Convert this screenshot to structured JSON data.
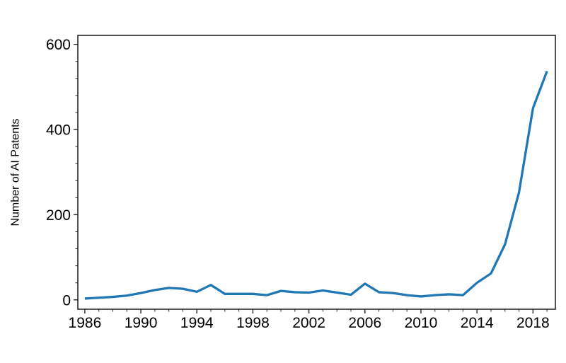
{
  "chart_data": {
    "type": "line",
    "title": "",
    "xlabel": "",
    "ylabel": "Number of AI Patents",
    "x": [
      1986,
      1987,
      1988,
      1989,
      1990,
      1991,
      1992,
      1993,
      1994,
      1995,
      1996,
      1997,
      1998,
      1999,
      2000,
      2001,
      2002,
      2003,
      2004,
      2005,
      2006,
      2007,
      2008,
      2009,
      2010,
      2011,
      2012,
      2013,
      2014,
      2015,
      2016,
      2017,
      2018,
      2019
    ],
    "series": [
      {
        "name": "AI Patents",
        "values": [
          3,
          5,
          7,
          10,
          16,
          23,
          28,
          26,
          19,
          35,
          14,
          14,
          14,
          11,
          21,
          18,
          17,
          22,
          17,
          12,
          38,
          18,
          16,
          11,
          8,
          11,
          13,
          11,
          40,
          62,
          130,
          252,
          450,
          537
        ]
      }
    ],
    "xlim": [
      1985.5,
      2019.6
    ],
    "ylim": [
      -22,
      621
    ],
    "x_major_ticks": [
      1986,
      1990,
      1994,
      1998,
      2002,
      2006,
      2010,
      2014,
      2018
    ],
    "x_major_tick_labels": [
      "1986",
      "1990",
      "1994",
      "1998",
      "2002",
      "2006",
      "2010",
      "2014",
      "2018"
    ],
    "y_major_ticks": [
      0,
      200,
      400,
      600
    ],
    "y_major_tick_labels": [
      "0",
      "200",
      "400",
      "600"
    ],
    "x_minor_step": 1,
    "y_minor_step": 40,
    "grid": false,
    "legend_position": "none",
    "line_color": "#1f77b4",
    "axis_color": "#262626",
    "text_color": "#000000",
    "background_color": "#ffffff"
  }
}
